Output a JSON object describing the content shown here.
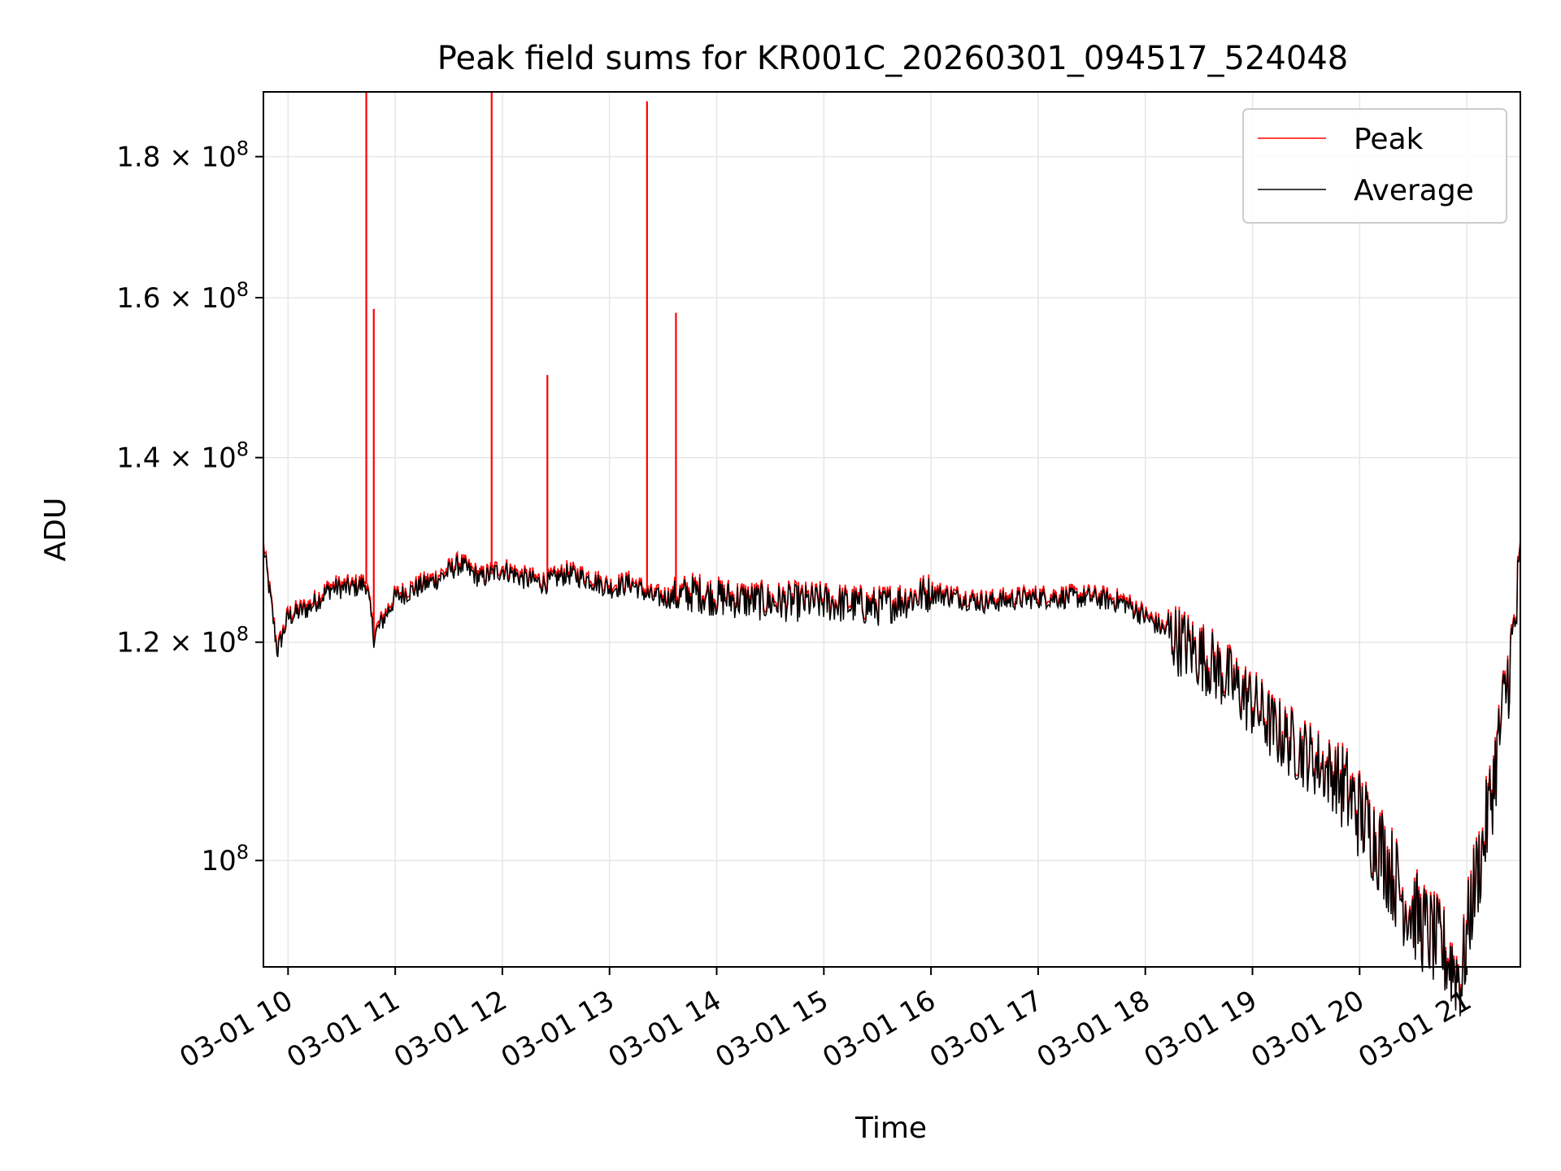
{
  "chart_data": {
    "type": "line",
    "title": "Peak field sums for KR001C_20260301_094517_524048",
    "xlabel": "Time",
    "ylabel": "ADU",
    "yscale": "log",
    "ylim": [
      91500000,
      190000000
    ],
    "xlim_hours": [
      9.77,
      21.5
    ],
    "grid": true,
    "legend_location": "upper right",
    "x_ticks": [
      {
        "hour": 10,
        "label": "03-01 10"
      },
      {
        "hour": 11,
        "label": "03-01 11"
      },
      {
        "hour": 12,
        "label": "03-01 12"
      },
      {
        "hour": 13,
        "label": "03-01 13"
      },
      {
        "hour": 14,
        "label": "03-01 14"
      },
      {
        "hour": 15,
        "label": "03-01 15"
      },
      {
        "hour": 16,
        "label": "03-01 16"
      },
      {
        "hour": 17,
        "label": "03-01 17"
      },
      {
        "hour": 18,
        "label": "03-01 18"
      },
      {
        "hour": 19,
        "label": "03-01 19"
      },
      {
        "hour": 20,
        "label": "03-01 20"
      },
      {
        "hour": 21,
        "label": "03-01 21"
      }
    ],
    "y_ticks": [
      {
        "value": 100000000,
        "mantissa": "",
        "exponent": "8"
      },
      {
        "value": 120000000,
        "mantissa": "1.2",
        "exponent": "8"
      },
      {
        "value": 140000000,
        "mantissa": "1.4",
        "exponent": "8"
      },
      {
        "value": 160000000,
        "mantissa": "1.6",
        "exponent": "8"
      },
      {
        "value": 180000000,
        "mantissa": "1.8",
        "exponent": "8"
      }
    ],
    "y_tick_base": "10",
    "y_tick_times": "×",
    "series": [
      {
        "name": "Peak",
        "color": "#ff0000",
        "spikes": [
          {
            "hour": 10.73,
            "value": 190000000
          },
          {
            "hour": 10.8,
            "value": 158500000
          },
          {
            "hour": 11.9,
            "value": 190000000
          },
          {
            "hour": 12.42,
            "value": 150000000
          },
          {
            "hour": 13.35,
            "value": 188500000
          },
          {
            "hour": 13.62,
            "value": 158000000
          }
        ]
      },
      {
        "name": "Average",
        "color": "#000000",
        "x_hours": [
          9.77,
          9.9,
          10.0,
          10.2,
          10.4,
          10.6,
          10.73,
          10.8,
          11.0,
          11.2,
          11.4,
          11.6,
          11.8,
          12.0,
          12.2,
          12.4,
          12.6,
          12.8,
          13.0,
          13.2,
          13.4,
          13.6,
          13.8,
          14.0,
          14.5,
          15.0,
          15.5,
          16.0,
          16.5,
          17.0,
          17.5,
          17.8,
          18.0,
          18.2,
          18.4,
          18.6,
          18.8,
          19.0,
          19.2,
          19.4,
          19.6,
          19.8,
          20.0,
          20.2,
          20.4,
          20.6,
          20.8,
          20.95,
          21.05,
          21.15,
          21.25,
          21.35,
          21.45,
          21.5
        ],
        "values": [
          130000000,
          119000000,
          122500000,
          123500000,
          125500000,
          125500000,
          126000000,
          120500000,
          124500000,
          125500000,
          126500000,
          128000000,
          126500000,
          127500000,
          126500000,
          126000000,
          127000000,
          126500000,
          125500000,
          126000000,
          124500000,
          124500000,
          125000000,
          124500000,
          124000000,
          124000000,
          123500000,
          125000000,
          124000000,
          124500000,
          124500000,
          124000000,
          122500000,
          121000000,
          119500000,
          118000000,
          116000000,
          114000000,
          111500000,
          110000000,
          108500000,
          107000000,
          104000000,
          101000000,
          97000000,
          94500000,
          92500000,
          90500000,
          97000000,
          101000000,
          107000000,
          114000000,
          121500000,
          127500000
        ]
      }
    ]
  }
}
